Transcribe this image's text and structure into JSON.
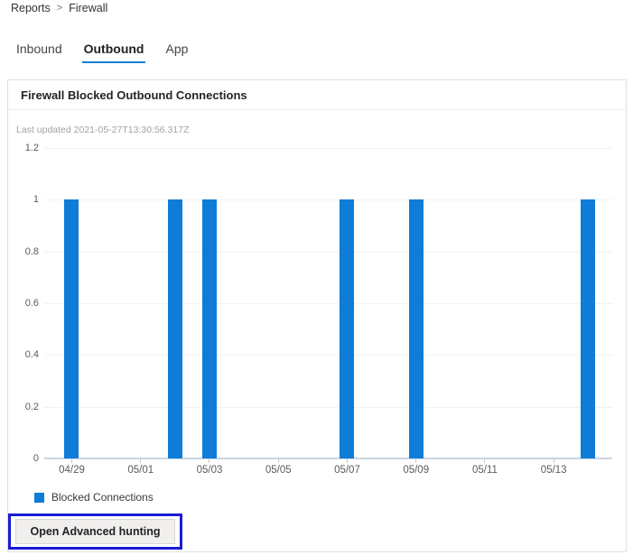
{
  "breadcrumb": {
    "items": [
      "Reports",
      "Firewall"
    ],
    "separator": ">"
  },
  "tabs": {
    "inbound": "Inbound",
    "outbound": "Outbound",
    "app": "App"
  },
  "card": {
    "title": "Firewall Blocked Outbound Connections",
    "last_updated": "Last updated 2021-05-27T13:30:56.317Z"
  },
  "legend": {
    "label": "Blocked Connections"
  },
  "actions": {
    "open_advanced_hunting": "Open Advanced hunting"
  },
  "colors": {
    "bar": "#0f7cd7",
    "tab_underline": "#1183d6",
    "highlight_box": "#1b1bd6",
    "grid_line": "#f2f2f2",
    "axis_line": "#c7d6e6"
  },
  "chart_data": {
    "type": "bar",
    "title": "Firewall Blocked Outbound Connections",
    "series_name": "Blocked Connections",
    "x": [
      "04/29",
      "05/02",
      "05/03",
      "05/07",
      "05/09",
      "05/14"
    ],
    "values": [
      1,
      1,
      1,
      1,
      1,
      1
    ],
    "x_ticks": [
      "04/29",
      "05/01",
      "05/03",
      "05/05",
      "05/07",
      "05/09",
      "05/11",
      "05/13"
    ],
    "x_domain": [
      "04/28",
      "05/15"
    ],
    "xlabel": "",
    "ylabel": "",
    "ylim": [
      0,
      1.2
    ],
    "y_ticks": [
      0,
      0.2,
      0.4,
      0.6,
      0.8,
      1,
      1.2
    ],
    "grid": true,
    "legend_position": "bottom-left"
  }
}
